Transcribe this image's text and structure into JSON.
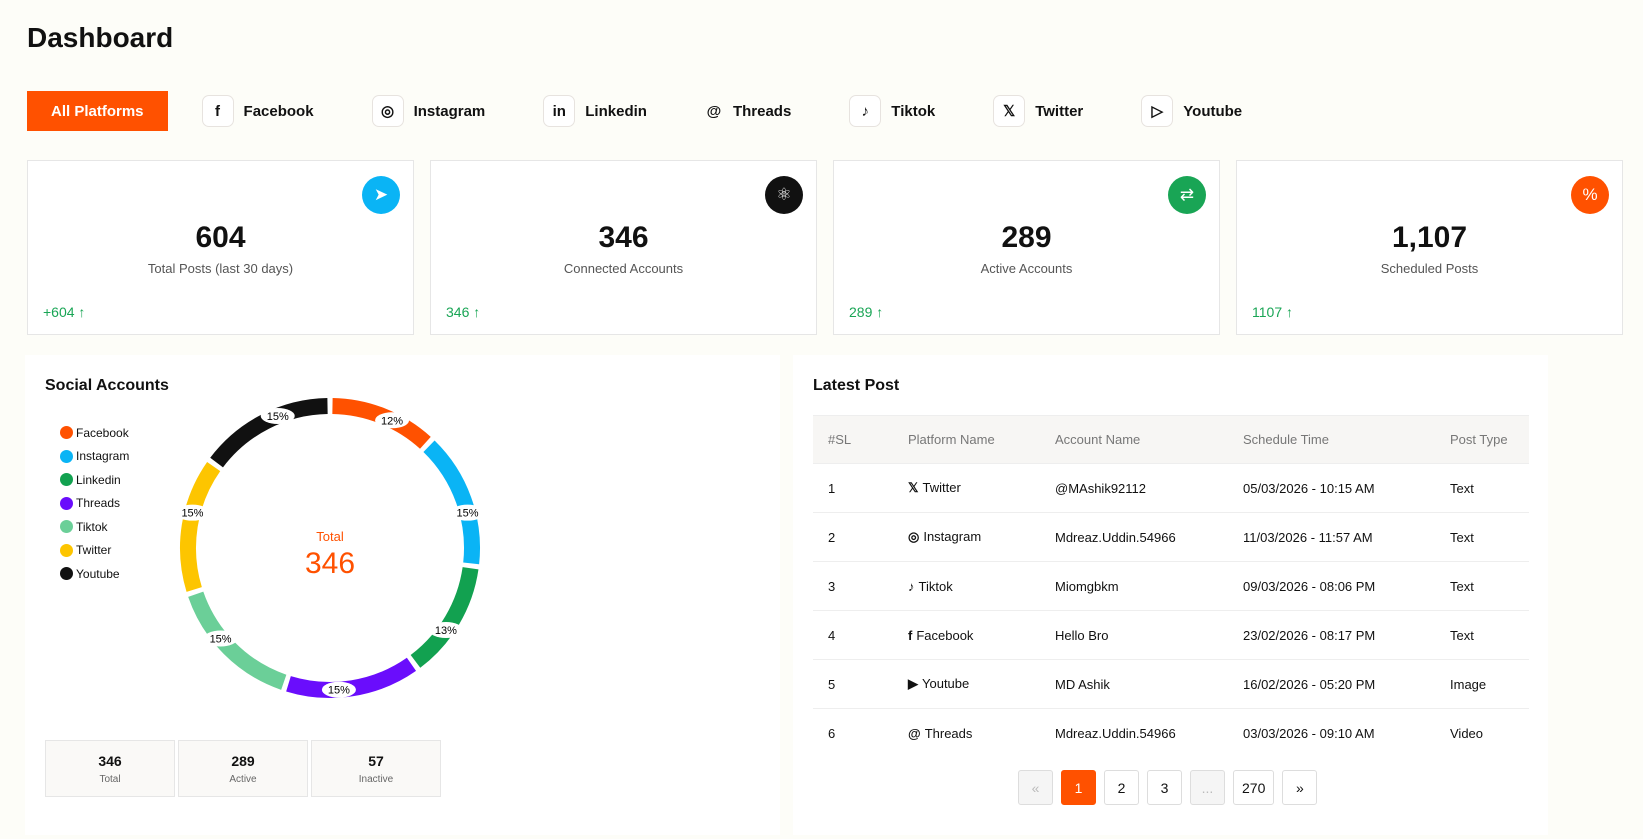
{
  "title": "Dashboard",
  "tabs": [
    {
      "label": "All Platforms",
      "icon": ""
    },
    {
      "label": "Facebook",
      "icon": "f"
    },
    {
      "label": "Instagram",
      "icon": "◎"
    },
    {
      "label": "Linkedin",
      "icon": "in"
    },
    {
      "label": "Threads",
      "icon": "@"
    },
    {
      "label": "Tiktok",
      "icon": "♪"
    },
    {
      "label": "Twitter",
      "icon": "𝕏"
    },
    {
      "label": "Youtube",
      "icon": "▷"
    }
  ],
  "cards": [
    {
      "value": "604",
      "label": "Total Posts (last 30 days)",
      "change": "+604 ↑",
      "color": "#0ab4f5",
      "icon": "➤"
    },
    {
      "value": "346",
      "label": "Connected Accounts",
      "change": "346 ↑",
      "color": "#111111",
      "icon": "⚛"
    },
    {
      "value": "289",
      "label": "Active Accounts",
      "change": "289 ↑",
      "color": "#19a555",
      "icon": "⇄"
    },
    {
      "value": "1,107",
      "label": "Scheduled Posts",
      "change": "1107 ↑",
      "color": "#ff5100",
      "icon": "%"
    }
  ],
  "social": {
    "title": "Social Accounts",
    "center_label": "Total",
    "center_value": "346",
    "stats": [
      {
        "value": "346",
        "label": "Total"
      },
      {
        "value": "289",
        "label": "Active"
      },
      {
        "value": "57",
        "label": "Inactive"
      }
    ]
  },
  "chart_data": {
    "type": "pie",
    "title": "Social Accounts",
    "categories": [
      "Facebook",
      "Instagram",
      "Linkedin",
      "Threads",
      "Tiktok",
      "Twitter",
      "Youtube"
    ],
    "values": [
      12,
      15,
      13,
      15,
      15,
      15,
      15
    ],
    "labels": [
      "12%",
      "15%",
      "13%",
      "15%",
      "15%",
      "15%",
      "15%"
    ],
    "colors": [
      "#ff5100",
      "#0ab4f5",
      "#12a150",
      "#6a0dfc",
      "#6bcf98",
      "#fdc500",
      "#111111"
    ],
    "legend": "left"
  },
  "latest": {
    "title": "Latest Post",
    "headers": [
      "#SL",
      "Platform Name",
      "Account Name",
      "Schedule Time",
      "Post Type"
    ],
    "rows": [
      [
        "1",
        "Twitter",
        "@MAshik92112",
        "05/03/2026 - 10:15 AM",
        "Text",
        "𝕏"
      ],
      [
        "2",
        "Instagram",
        "Mdreaz.Uddin.54966",
        "11/03/2026 - 11:57 AM",
        "Text",
        "◎"
      ],
      [
        "3",
        "Tiktok",
        "Miomgbkm",
        "09/03/2026 - 08:06 PM",
        "Text",
        "♪"
      ],
      [
        "4",
        "Facebook",
        "Hello Bro",
        "23/02/2026 - 08:17 PM",
        "Text",
        "f"
      ],
      [
        "5",
        "Youtube",
        "MD Ashik",
        "16/02/2026 - 05:20 PM",
        "Image",
        "▶"
      ],
      [
        "6",
        "Threads",
        "Mdreaz.Uddin.54966",
        "03/03/2026 - 09:10 AM",
        "Video",
        "@"
      ]
    ]
  },
  "pager": [
    "«",
    "1",
    "2",
    "3",
    "...",
    "270",
    "»"
  ]
}
